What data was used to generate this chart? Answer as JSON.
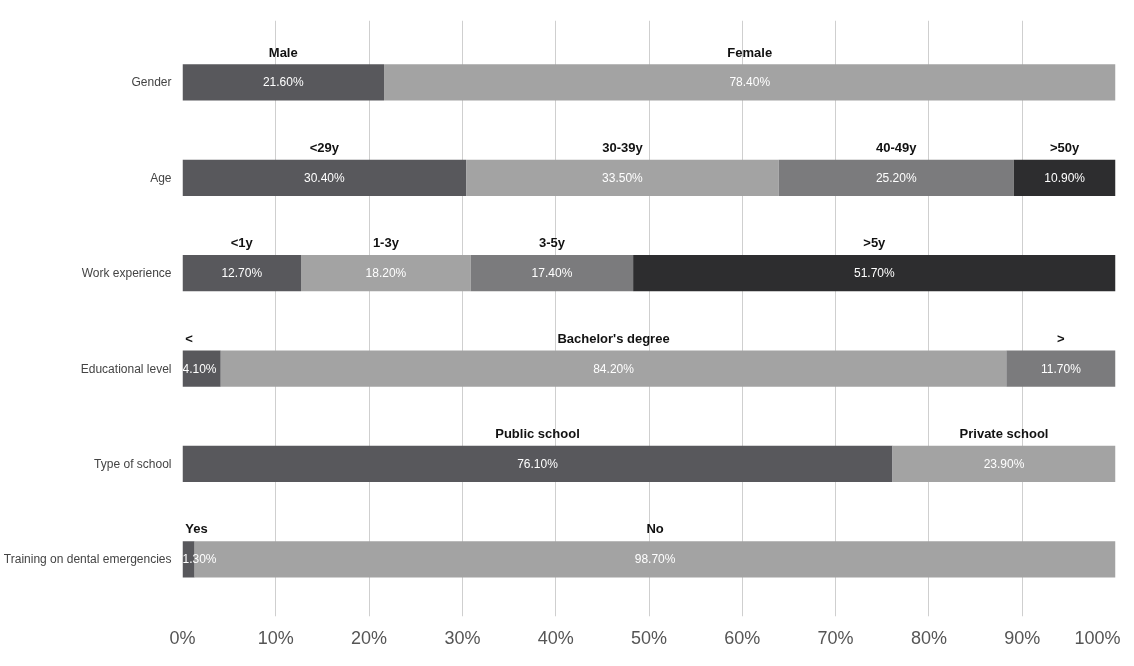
{
  "chart_data": {
    "type": "bar",
    "orientation": "horizontal",
    "stacked": true,
    "categories": [
      "Gender",
      "Age",
      "Work experience",
      "Educational level",
      "Type of school",
      "Training on dental emergencies"
    ],
    "series": [
      {
        "color": "#58585c",
        "values": [
          21.6,
          30.4,
          12.7,
          4.1,
          76.1,
          1.3
        ],
        "value_labels": [
          "21.60%",
          "30.40%",
          "12.70%",
          "4.10%",
          "76.10%",
          "1.30%"
        ]
      },
      {
        "color": "#a3a3a3",
        "values": [
          78.4,
          33.5,
          18.2,
          84.2,
          23.9,
          98.7
        ],
        "value_labels": [
          "78.40%",
          "33.50%",
          "18.20%",
          "84.20%",
          "23.90%",
          "98.70%"
        ]
      },
      {
        "color": "#7b7b7d",
        "values": [
          null,
          25.2,
          17.4,
          11.7,
          null,
          null
        ],
        "value_labels": [
          null,
          "25.20%",
          "17.40%",
          "11.70%",
          null,
          null
        ]
      },
      {
        "color": "#2d2d2f",
        "values": [
          null,
          10.9,
          51.7,
          null,
          null,
          null
        ],
        "value_labels": [
          null,
          "10.90%",
          "51.70%",
          null,
          null,
          null
        ]
      }
    ],
    "annotations": [
      "Male",
      "Female",
      "<29y",
      "30-39y",
      "40-49y",
      ">50y",
      "<1y",
      "1-3y",
      "3-5y",
      ">5y",
      "<",
      "Bachelor's degree",
      ">",
      "Public school",
      "Private school",
      "Yes",
      "No"
    ],
    "xlim": [
      0,
      100
    ],
    "xticks": [
      {
        "value": 0,
        "label": "0%"
      },
      {
        "value": 10,
        "label": "10%"
      },
      {
        "value": 20,
        "label": "20%"
      },
      {
        "value": 30,
        "label": "30%"
      },
      {
        "value": 40,
        "label": "40%"
      },
      {
        "value": 50,
        "label": "50%"
      },
      {
        "value": 60,
        "label": "60%"
      },
      {
        "value": 70,
        "label": "70%"
      },
      {
        "value": 80,
        "label": "80%"
      },
      {
        "value": 90,
        "label": "90%"
      },
      {
        "value": 100,
        "label": "100%"
      }
    ],
    "grid": "x"
  }
}
